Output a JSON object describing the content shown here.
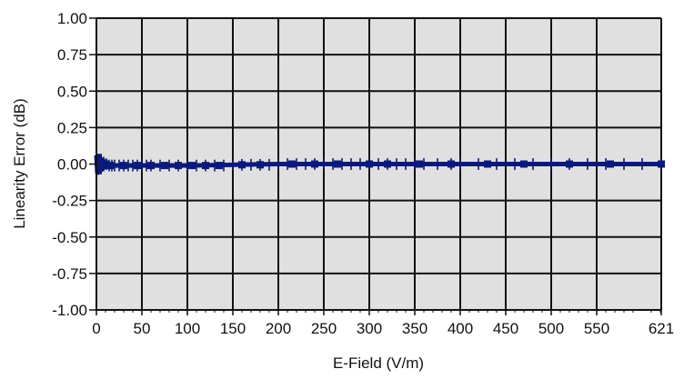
{
  "chart_data": {
    "type": "line",
    "title": "",
    "xlabel": "E-Field (V/m)",
    "ylabel": "Linearity Error (dB)",
    "xlim": [
      0,
      621
    ],
    "ylim": [
      -1.0,
      1.0
    ],
    "x_ticks": [
      0,
      50,
      100,
      150,
      200,
      250,
      300,
      350,
      400,
      450,
      500,
      550,
      621
    ],
    "x_tick_labels": [
      "0",
      "50",
      "100",
      "150",
      "200",
      "250",
      "300",
      "350",
      "400",
      "450",
      "500",
      "550",
      "621"
    ],
    "y_ticks": [
      1.0,
      0.75,
      0.5,
      0.25,
      0.0,
      -0.25,
      -0.5,
      -0.75,
      -1.0
    ],
    "y_tick_labels": [
      "1.00",
      "0.75",
      "0.50",
      "0.25",
      "0.00",
      "-0.25",
      "-0.50",
      "-0.75",
      "-1.00"
    ],
    "grid": true,
    "legend": "none",
    "colors": {
      "plot_background": "#e0e0e0",
      "grid": "#111111",
      "series": "#0a1a7a"
    },
    "series": [
      {
        "x": [
          0,
          1,
          2,
          3,
          4,
          5,
          6,
          7,
          8,
          10,
          12,
          15,
          20,
          30,
          40,
          50,
          75,
          100,
          150,
          200,
          250,
          300,
          350,
          400,
          450,
          500,
          550,
          621
        ],
        "y": [
          0.06,
          -0.06,
          0.05,
          -0.05,
          0.04,
          -0.04,
          0.03,
          -0.03,
          0.02,
          -0.02,
          0.01,
          -0.01,
          -0.01,
          -0.01,
          -0.01,
          -0.01,
          -0.01,
          -0.01,
          -0.005,
          0.0,
          0.0,
          0.0,
          0.0,
          0.0,
          0.0,
          0.0,
          0.0,
          0.0
        ]
      }
    ],
    "error_bars": {
      "x": [
        3,
        5,
        8,
        11,
        14,
        17,
        20,
        25,
        30,
        35,
        40,
        45,
        50,
        55,
        60,
        70,
        80,
        90,
        100,
        110,
        120,
        130,
        140,
        150,
        160,
        170,
        180,
        190,
        200,
        210,
        220,
        230,
        240,
        250,
        260,
        270,
        280,
        290,
        300,
        310,
        320,
        330,
        340,
        350,
        360,
        375,
        390,
        400,
        420,
        440,
        460,
        480,
        500,
        520,
        540,
        560,
        580,
        600,
        621
      ],
      "y": [
        0.0,
        0.0,
        0.0,
        0.0,
        -0.01,
        -0.01,
        -0.01,
        -0.01,
        -0.01,
        -0.01,
        -0.01,
        -0.01,
        -0.01,
        -0.01,
        -0.01,
        -0.01,
        -0.01,
        -0.01,
        -0.01,
        -0.01,
        -0.01,
        -0.01,
        -0.01,
        -0.005,
        -0.005,
        -0.005,
        -0.005,
        -0.005,
        0.0,
        0.0,
        0.0,
        0.0,
        0.0,
        0.0,
        0.0,
        0.0,
        0.0,
        0.0,
        0.0,
        0.0,
        0.0,
        0.0,
        0.0,
        0.0,
        0.0,
        0.0,
        0.0,
        0.0,
        0.0,
        0.0,
        0.0,
        0.0,
        0.0,
        0.0,
        0.0,
        0.0,
        0.0,
        0.0,
        0.0
      ],
      "error": [
        0.06,
        0.05,
        0.05,
        0.04,
        0.04,
        0.04,
        0.04,
        0.04,
        0.04,
        0.04,
        0.04,
        0.04,
        0.04,
        0.04,
        0.04,
        0.04,
        0.04,
        0.04,
        0.04,
        0.04,
        0.04,
        0.04,
        0.04,
        0.04,
        0.04,
        0.04,
        0.04,
        0.04,
        0.04,
        0.04,
        0.04,
        0.04,
        0.04,
        0.04,
        0.04,
        0.04,
        0.04,
        0.04,
        0.04,
        0.04,
        0.04,
        0.04,
        0.04,
        0.04,
        0.04,
        0.04,
        0.04,
        0.04,
        0.04,
        0.04,
        0.04,
        0.04,
        0.04,
        0.04,
        0.04,
        0.04,
        0.04,
        0.04,
        0.04
      ]
    },
    "markers": {
      "x": [
        15,
        30,
        45,
        60,
        75,
        90,
        105,
        120,
        135,
        160,
        180,
        215,
        240,
        265,
        300,
        320,
        355,
        390,
        430,
        470,
        520,
        565,
        621
      ],
      "y": [
        -0.01,
        -0.01,
        -0.01,
        -0.01,
        -0.01,
        -0.01,
        -0.01,
        -0.01,
        -0.01,
        -0.005,
        -0.005,
        0.0,
        0.0,
        0.0,
        0.0,
        0.0,
        0.0,
        0.0,
        0.0,
        0.0,
        0.0,
        0.0,
        0.0
      ]
    }
  }
}
